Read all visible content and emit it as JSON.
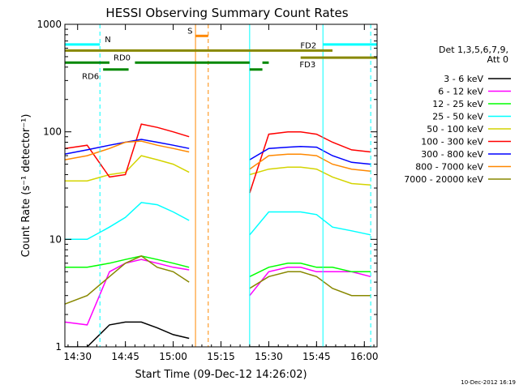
{
  "chart_data": {
    "type": "line",
    "title": "HESSI Observing Summary Count Rates",
    "xlabel": "Start Time (09-Dec-12 14:26:02)",
    "ylabel": "Count Rate (s⁻¹ detector⁻¹)",
    "y_scale": "log",
    "ylim": [
      1,
      1000
    ],
    "xlim": [
      "14:26",
      "16:04"
    ],
    "x_ticks": [
      "14:30",
      "14:45",
      "15:00",
      "15:15",
      "15:30",
      "15:45",
      "16:00"
    ],
    "y_ticks": [
      "1",
      "10",
      "100",
      "1000"
    ],
    "grid": false,
    "legend_header": [
      "Det 1,3,5,6,7,9,",
      "Att 0"
    ],
    "legend_position": "right",
    "timestamp": "10-Dec-2012 16:19",
    "series": [
      {
        "name": "3 - 6 keV",
        "color": "#000000",
        "x": [
          "14:26",
          "14:33",
          "14:40",
          "14:45",
          "14:50",
          "14:55",
          "15:00",
          "15:05",
          "15:08",
          "15:24",
          "15:30",
          "15:36",
          "15:40",
          "15:45",
          "15:50",
          "15:56",
          "16:02"
        ],
        "y": [
          1.0,
          1.0,
          1.6,
          1.7,
          1.7,
          1.5,
          1.3,
          1.2,
          null,
          1.0,
          1.0,
          1.0,
          1.0,
          1.0,
          1.0,
          1.0,
          1.0
        ]
      },
      {
        "name": "6 - 12 keV",
        "color": "#ff00ff",
        "x": [
          "14:26",
          "14:33",
          "14:40",
          "14:45",
          "14:50",
          "14:55",
          "15:00",
          "15:05",
          "15:08",
          "15:24",
          "15:30",
          "15:36",
          "15:40",
          "15:45",
          "15:50",
          "15:56",
          "16:02"
        ],
        "y": [
          1.7,
          1.6,
          5.0,
          6.0,
          6.5,
          6.0,
          5.5,
          5.2,
          null,
          3.0,
          5.0,
          5.5,
          5.5,
          5.0,
          5.0,
          5.0,
          4.5
        ]
      },
      {
        "name": "12 - 25 keV",
        "color": "#00ff00",
        "x": [
          "14:26",
          "14:33",
          "14:40",
          "14:45",
          "14:50",
          "14:55",
          "15:00",
          "15:05",
          "15:08",
          "15:24",
          "15:30",
          "15:36",
          "15:40",
          "15:45",
          "15:50",
          "15:56",
          "16:02"
        ],
        "y": [
          5.5,
          5.5,
          6.0,
          6.5,
          7.0,
          6.5,
          6.0,
          5.5,
          null,
          4.5,
          5.5,
          6.0,
          6.0,
          5.5,
          5.5,
          5.0,
          5.0
        ]
      },
      {
        "name": "25 - 50 keV",
        "color": "#00ffff",
        "x": [
          "14:26",
          "14:33",
          "14:40",
          "14:45",
          "14:50",
          "14:55",
          "15:00",
          "15:05",
          "15:08",
          "15:24",
          "15:30",
          "15:36",
          "15:40",
          "15:45",
          "15:50",
          "15:56",
          "16:02"
        ],
        "y": [
          10,
          10,
          13,
          16,
          22,
          21,
          18,
          15,
          null,
          11,
          18,
          18,
          18,
          17,
          13,
          12,
          11
        ]
      },
      {
        "name": "50 - 100 keV",
        "color": "#d4d400",
        "x": [
          "14:26",
          "14:33",
          "14:40",
          "14:45",
          "14:50",
          "14:55",
          "15:00",
          "15:05",
          "15:08",
          "15:24",
          "15:30",
          "15:36",
          "15:40",
          "15:45",
          "15:50",
          "15:56",
          "16:02"
        ],
        "y": [
          35,
          35,
          40,
          42,
          60,
          55,
          50,
          42,
          null,
          40,
          45,
          47,
          47,
          45,
          38,
          33,
          32
        ]
      },
      {
        "name": "100 - 300 keV",
        "color": "#ff0000",
        "x": [
          "14:26",
          "14:33",
          "14:40",
          "14:45",
          "14:50",
          "14:55",
          "15:00",
          "15:05",
          "15:08",
          "15:24",
          "15:30",
          "15:36",
          "15:40",
          "15:45",
          "15:50",
          "15:56",
          "16:02"
        ],
        "y": [
          70,
          75,
          38,
          40,
          118,
          110,
          100,
          90,
          null,
          27,
          95,
          100,
          100,
          95,
          80,
          68,
          65
        ]
      },
      {
        "name": "300 - 800 keV",
        "color": "#0000ff",
        "x": [
          "14:26",
          "14:33",
          "14:40",
          "14:45",
          "14:50",
          "14:55",
          "15:00",
          "15:05",
          "15:08",
          "15:24",
          "15:30",
          "15:36",
          "15:40",
          "15:45",
          "15:50",
          "15:56",
          "16:02"
        ],
        "y": [
          62,
          68,
          75,
          80,
          85,
          80,
          75,
          70,
          null,
          55,
          70,
          72,
          73,
          72,
          60,
          52,
          50
        ]
      },
      {
        "name": "800 - 7000 keV",
        "color": "#ff8800",
        "x": [
          "14:26",
          "14:33",
          "14:40",
          "14:45",
          "14:50",
          "14:55",
          "15:00",
          "15:05",
          "15:08",
          "15:24",
          "15:30",
          "15:36",
          "15:40",
          "15:45",
          "15:50",
          "15:56",
          "16:02"
        ],
        "y": [
          55,
          60,
          70,
          80,
          82,
          75,
          70,
          65,
          null,
          45,
          60,
          62,
          62,
          60,
          50,
          45,
          43
        ]
      },
      {
        "name": "7000 - 20000 keV",
        "color": "#888800",
        "x": [
          "14:26",
          "14:33",
          "14:40",
          "14:45",
          "14:50",
          "14:55",
          "15:00",
          "15:05",
          "15:08",
          "15:24",
          "15:30",
          "15:36",
          "15:40",
          "15:45",
          "15:50",
          "15:56",
          "16:02"
        ],
        "y": [
          2.5,
          3.0,
          4.5,
          6.0,
          7.0,
          5.5,
          5.0,
          4.0,
          null,
          3.5,
          4.5,
          5.0,
          5.0,
          4.5,
          3.5,
          3.0,
          3.0
        ]
      }
    ],
    "annotations": [
      {
        "label": "N",
        "color": "#00ffff",
        "segments": [
          [
            "14:26",
            "14:37"
          ],
          [
            "15:47",
            "16:04"
          ]
        ],
        "level": 650
      },
      {
        "label": "S",
        "color": "#ff8800",
        "segments": [
          [
            "15:07",
            "15:11"
          ]
        ],
        "level": 780
      },
      {
        "label": "FD2",
        "color": "#888800",
        "segments": [
          [
            "14:26",
            "15:50"
          ]
        ],
        "level": 570
      },
      {
        "label": "FD3",
        "color": "#888800",
        "segments": [
          [
            "15:40",
            "16:04"
          ]
        ],
        "level": 490
      },
      {
        "label": "RD0",
        "color": "#008800",
        "segments": [
          [
            "14:26",
            "14:40"
          ],
          [
            "14:48",
            "15:24"
          ],
          [
            "15:28",
            "15:30"
          ]
        ],
        "level": 440
      },
      {
        "label": "RD6",
        "color": "#008800",
        "segments": [
          [
            "14:38",
            "14:46"
          ],
          [
            "15:24",
            "15:28"
          ]
        ],
        "level": 380
      }
    ],
    "vertical_markers": [
      {
        "time": "14:26",
        "color": "#00ffff",
        "style": "solid"
      },
      {
        "time": "14:37",
        "color": "#00ffff",
        "style": "dashed"
      },
      {
        "time": "15:07",
        "color": "#ff8800",
        "style": "solid"
      },
      {
        "time": "15:11",
        "color": "#ff8800",
        "style": "dashed"
      },
      {
        "time": "15:24",
        "color": "#00ffff",
        "style": "solid"
      },
      {
        "time": "15:47",
        "color": "#00ffff",
        "style": "solid"
      },
      {
        "time": "16:02",
        "color": "#00ffff",
        "style": "dashed"
      }
    ]
  }
}
